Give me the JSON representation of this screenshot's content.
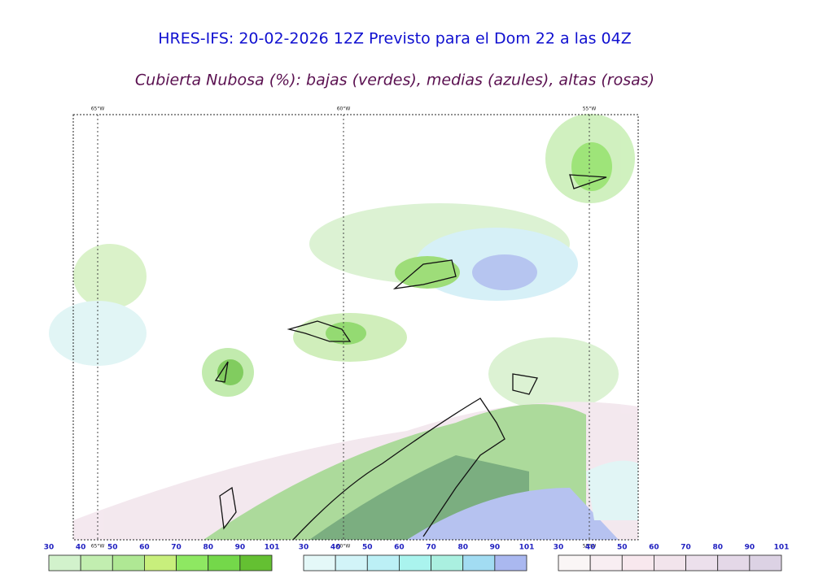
{
  "header": {
    "title": "HRES-IFS: 20-02-2026 12Z Previsto para el Dom 22 a las 04Z",
    "subtitle": "Cubierta Nubosa (%): bajas (verdes), medias (azules), altas (rosas)"
  },
  "map": {
    "meridians": [
      "65°W",
      "60°W",
      "55°W"
    ]
  },
  "colorbars": [
    {
      "ticks": [
        30,
        40,
        50,
        60,
        70,
        80,
        90,
        101
      ],
      "colors": [
        "#d2f2cc",
        "#c2eeb0",
        "#afe894",
        "#c8ef7c",
        "#8ee862",
        "#74d84a",
        "#64c032"
      ]
    },
    {
      "ticks": [
        30,
        40,
        50,
        60,
        70,
        80,
        90,
        101
      ],
      "colors": [
        "#e4f8f8",
        "#d2f4f8",
        "#bcf0f6",
        "#aaf4ee",
        "#aaf0e0",
        "#a2dcf2",
        "#aab8f0"
      ]
    },
    {
      "ticks": [
        30,
        40,
        50,
        60,
        70,
        80,
        90,
        101
      ],
      "colors": [
        "#faf6f6",
        "#f8eef2",
        "#f8e8ee",
        "#f2e4ec",
        "#ece0ec",
        "#e4d8e8",
        "#dcd2e4"
      ]
    }
  ]
}
